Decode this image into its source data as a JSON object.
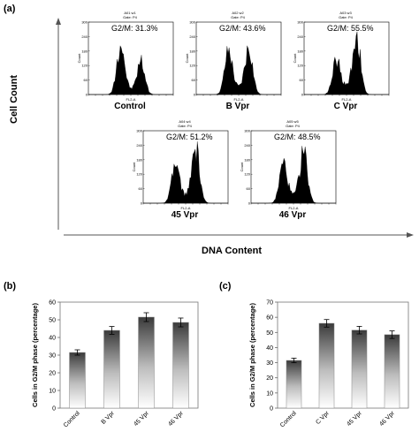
{
  "panel_a": {
    "label": "(a)",
    "y_axis_label": "Cell Count",
    "x_axis_label": "DNA Content",
    "inner_x_label": "FL2-A",
    "inner_y_label": "Count",
    "y_ticks": [
      "300",
      "240",
      "180",
      "120",
      "60",
      "0"
    ]
  },
  "panel_b": {
    "label": "(b)"
  },
  "panel_c": {
    "label": "(c)"
  },
  "chart_data": [
    {
      "type": "histogram",
      "panel": "a",
      "histograms": [
        {
          "sample": "A01 w1",
          "gate": "Gate: P4",
          "condition": "Control",
          "g2m_text": "G2/M: 31.3%",
          "g2m": 31.3
        },
        {
          "sample": "A02 w2",
          "gate": "Gate: P4",
          "condition": "B Vpr",
          "g2m_text": "G2/M: 43.6%",
          "g2m": 43.6
        },
        {
          "sample": "A03 w3",
          "gate": "Gate: P4",
          "condition": "C Vpr",
          "g2m_text": "G2/M: 55.5%",
          "g2m": 55.5
        },
        {
          "sample": "A04 w4",
          "gate": "Gate: P4",
          "condition": "45 Vpr",
          "g2m_text": "G2/M: 51.2%",
          "g2m": 51.2
        },
        {
          "sample": "A05 w5",
          "gate": "Gate: P4",
          "condition": "46 Vpr",
          "g2m_text": "G2/M: 48.5%",
          "g2m": 48.5
        }
      ],
      "ylim": [
        0,
        300
      ]
    },
    {
      "type": "bar",
      "panel": "b",
      "categories": [
        "Control",
        "B Vpr",
        "45 Vpr",
        "46 Vpr"
      ],
      "values": [
        31.5,
        44,
        51.5,
        48.5
      ],
      "errors": [
        1.5,
        2.2,
        2.5,
        2.5
      ],
      "ylabel": "Cells in G2/M phase (percentage)",
      "ylim": [
        0,
        60
      ],
      "yticks": [
        0,
        10,
        20,
        30,
        40,
        50,
        60
      ],
      "grid": false
    },
    {
      "type": "bar",
      "panel": "c",
      "categories": [
        "Control",
        "C Vpr",
        "45 Vpr",
        "46 Vpr"
      ],
      "values": [
        31.5,
        56,
        51.5,
        48.5
      ],
      "errors": [
        1.5,
        2.5,
        2.5,
        2.5
      ],
      "ylabel": "Cells in G2/M phase (percentage)",
      "ylim": [
        0,
        70
      ],
      "yticks": [
        0,
        10,
        20,
        30,
        40,
        50,
        60,
        70
      ],
      "grid": false
    }
  ]
}
